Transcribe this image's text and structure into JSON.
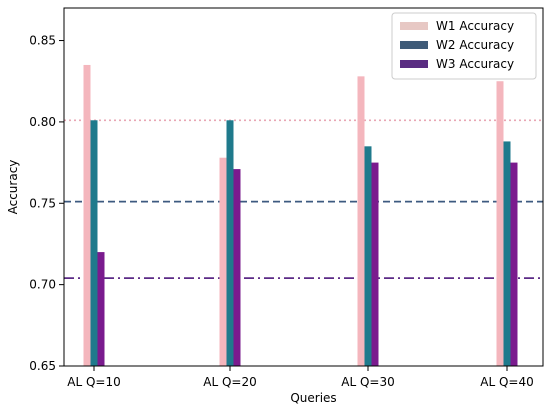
{
  "chart_data": {
    "type": "bar",
    "title": "",
    "xlabel": "Queries",
    "ylabel": "Accuracy",
    "categories": [
      "AL Q=10",
      "AL Q=20",
      "AL Q=30",
      "AL Q=40"
    ],
    "ylim": [
      0.65,
      0.87
    ],
    "yticks": [
      "0.65",
      "0.70",
      "0.75",
      "0.80",
      "0.85"
    ],
    "grid": false,
    "legend_position": "top-right",
    "series": [
      {
        "name": "W1 Accuracy",
        "values": [
          0.835,
          0.778,
          0.828,
          0.825
        ],
        "color": "#f4b6bd",
        "legend_color": "#e7c8c4"
      },
      {
        "name": "W2 Accuracy",
        "values": [
          0.801,
          0.801,
          0.785,
          0.788
        ],
        "color": "#1f7a8c",
        "legend_color": "#3f5b78"
      },
      {
        "name": "W3 Accuracy",
        "values": [
          0.72,
          0.771,
          0.775,
          0.775
        ],
        "color": "#7a1b8e",
        "legend_color": "#5a2d82"
      }
    ],
    "reference_lines": [
      {
        "value": 0.801,
        "style": "dotted",
        "color": "#e8a6b3"
      },
      {
        "value": 0.751,
        "style": "dashed",
        "color": "#3d5a80"
      },
      {
        "value": 0.704,
        "style": "dashdot",
        "color": "#5b2a86"
      }
    ]
  }
}
